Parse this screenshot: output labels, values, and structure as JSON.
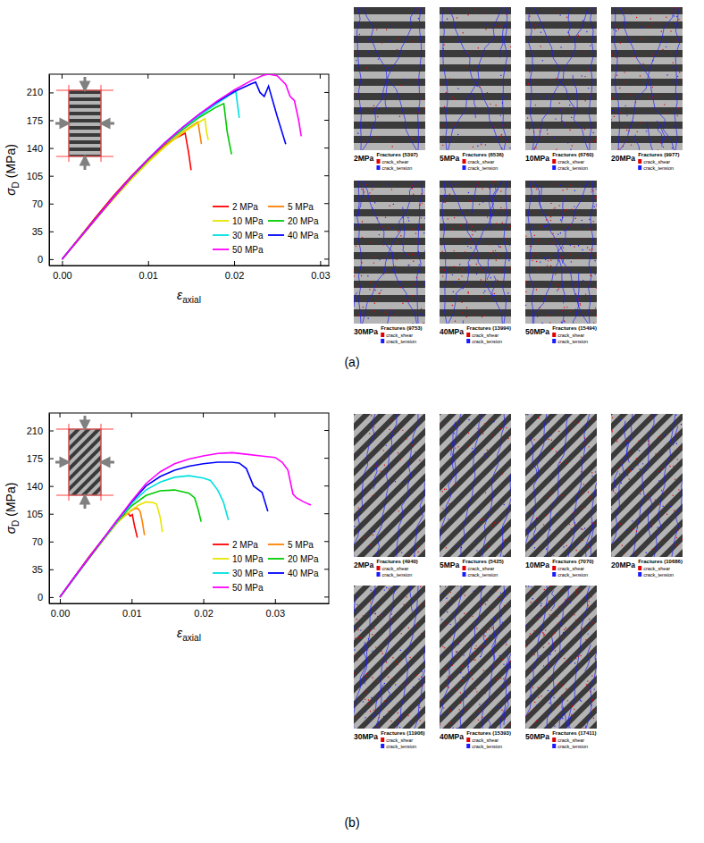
{
  "chart_data": [
    {
      "type": "line",
      "x_label": "εaxial",
      "y_label": "σD (MPa)",
      "xlim": [
        -0.0015,
        0.031
      ],
      "ylim": [
        -8,
        233
      ],
      "xticks": [
        {
          "value": 0,
          "label": "0.00"
        },
        {
          "value": 0.01,
          "label": "0.01"
        },
        {
          "value": 0.02,
          "label": "0.02"
        },
        {
          "value": 0.03,
          "label": "0.03"
        }
      ],
      "yticks": [
        0,
        35,
        70,
        105,
        140,
        175,
        210
      ],
      "legend": "lower right",
      "series": [
        {
          "name": "2 MPa",
          "color": "#ff0000",
          "x": [
            0,
            0.002,
            0.004,
            0.006,
            0.008,
            0.01,
            0.012,
            0.013,
            0.014,
            0.0143,
            0.0147,
            0.015
          ],
          "values": [
            0,
            27,
            54,
            80,
            104,
            126,
            144,
            151,
            157,
            159,
            135,
            112
          ]
        },
        {
          "name": "5 MPa",
          "color": "#ff8000",
          "x": [
            0,
            0.002,
            0.004,
            0.006,
            0.008,
            0.01,
            0.012,
            0.014,
            0.0155,
            0.0158,
            0.0162
          ],
          "values": [
            0,
            26,
            52,
            78,
            102,
            124,
            143,
            160,
            171,
            173,
            145
          ]
        },
        {
          "name": "10 MPa",
          "color": "#e6e600",
          "x": [
            0,
            0.002,
            0.004,
            0.006,
            0.008,
            0.01,
            0.012,
            0.014,
            0.016,
            0.0166,
            0.0168,
            0.017
          ],
          "values": [
            0,
            25,
            51,
            76,
            100,
            122,
            142,
            159,
            173,
            177,
            160,
            150
          ]
        },
        {
          "name": "20 MPa",
          "color": "#00cc00",
          "x": [
            0,
            0.002,
            0.004,
            0.006,
            0.008,
            0.01,
            0.012,
            0.014,
            0.016,
            0.018,
            0.0188,
            0.0192,
            0.0197
          ],
          "values": [
            0,
            26,
            52,
            78,
            102,
            125,
            146,
            163,
            179,
            192,
            196,
            160,
            132
          ]
        },
        {
          "name": "30 MPa",
          "color": "#00e0e0",
          "x": [
            0,
            0.002,
            0.004,
            0.006,
            0.008,
            0.01,
            0.012,
            0.014,
            0.016,
            0.018,
            0.0195,
            0.0202,
            0.0206
          ],
          "values": [
            0,
            26,
            52,
            78,
            103,
            126,
            147,
            165,
            181,
            196,
            207,
            211,
            178
          ]
        },
        {
          "name": "40 MPa",
          "color": "#0000ff",
          "x": [
            0,
            0.002,
            0.004,
            0.006,
            0.008,
            0.01,
            0.012,
            0.014,
            0.016,
            0.018,
            0.02,
            0.022,
            0.0225,
            0.023,
            0.0235,
            0.024,
            0.025,
            0.026
          ],
          "values": [
            0,
            26,
            52,
            78,
            103,
            126,
            147,
            166,
            183,
            198,
            211,
            221,
            223,
            210,
            205,
            218,
            180,
            145
          ]
        },
        {
          "name": "50 MPa",
          "color": "#ff00ff",
          "x": [
            0,
            0.002,
            0.004,
            0.006,
            0.008,
            0.01,
            0.012,
            0.014,
            0.016,
            0.018,
            0.02,
            0.022,
            0.0235,
            0.024,
            0.025,
            0.026,
            0.0265,
            0.027,
            0.0275,
            0.0278
          ],
          "values": [
            0,
            26,
            52,
            78,
            103,
            126,
            147,
            166,
            183,
            199,
            213,
            225,
            232,
            233,
            231,
            220,
            205,
            200,
            175,
            155
          ]
        }
      ]
    },
    {
      "type": "line",
      "x_label": "εaxial",
      "y_label": "σD (MPa)",
      "xlim": [
        -0.0015,
        0.0375
      ],
      "ylim": [
        -8,
        232
      ],
      "xticks": [
        {
          "value": 0,
          "label": "0.00"
        },
        {
          "value": 0.01,
          "label": "0.01"
        },
        {
          "value": 0.02,
          "label": "0.02"
        },
        {
          "value": 0.03,
          "label": "0.03"
        }
      ],
      "yticks": [
        0,
        35,
        70,
        105,
        140,
        175,
        210
      ],
      "legend": "lower right",
      "series": [
        {
          "name": "2 MPa",
          "color": "#ff0000",
          "x": [
            0,
            0.002,
            0.004,
            0.006,
            0.008,
            0.009,
            0.0095,
            0.0098,
            0.0101,
            0.0104,
            0.0108
          ],
          "values": [
            0,
            25,
            50,
            73,
            95,
            103,
            106,
            102,
            104,
            90,
            75
          ]
        },
        {
          "name": "5 MPa",
          "color": "#ff8000",
          "x": [
            0,
            0.002,
            0.004,
            0.006,
            0.008,
            0.0095,
            0.0103,
            0.0108,
            0.0112,
            0.0115,
            0.0118
          ],
          "values": [
            0,
            24,
            49,
            72,
            94,
            106,
            111,
            112,
            108,
            95,
            78
          ]
        },
        {
          "name": "10 MPa",
          "color": "#e6e600",
          "x": [
            0,
            0.002,
            0.004,
            0.006,
            0.008,
            0.01,
            0.011,
            0.012,
            0.013,
            0.0135,
            0.014,
            0.0143
          ],
          "values": [
            0,
            24,
            48,
            71,
            94,
            110,
            116,
            120,
            119,
            117,
            100,
            82
          ]
        },
        {
          "name": "20 MPa",
          "color": "#00cc00",
          "x": [
            0,
            0.002,
            0.004,
            0.006,
            0.008,
            0.01,
            0.012,
            0.014,
            0.016,
            0.018,
            0.0188,
            0.0193,
            0.0197
          ],
          "values": [
            0,
            24,
            48,
            72,
            95,
            115,
            128,
            134,
            135,
            131,
            125,
            110,
            95
          ]
        },
        {
          "name": "30 MPa",
          "color": "#00e0e0",
          "x": [
            0,
            0.002,
            0.004,
            0.006,
            0.008,
            0.01,
            0.012,
            0.014,
            0.016,
            0.018,
            0.02,
            0.021,
            0.022,
            0.0228,
            0.0235
          ],
          "values": [
            0,
            24,
            49,
            72,
            96,
            118,
            135,
            145,
            151,
            153,
            150,
            147,
            135,
            120,
            97
          ]
        },
        {
          "name": "40 MPa",
          "color": "#0000ff",
          "x": [
            0,
            0.002,
            0.004,
            0.006,
            0.008,
            0.01,
            0.012,
            0.014,
            0.016,
            0.018,
            0.02,
            0.022,
            0.024,
            0.025,
            0.026,
            0.027,
            0.0282,
            0.029
          ],
          "values": [
            0,
            25,
            49,
            73,
            97,
            120,
            140,
            152,
            160,
            165,
            168,
            170,
            170,
            169,
            162,
            140,
            132,
            108
          ]
        },
        {
          "name": "50 MPa",
          "color": "#ff00ff",
          "x": [
            0,
            0.002,
            0.004,
            0.006,
            0.008,
            0.01,
            0.012,
            0.014,
            0.016,
            0.018,
            0.02,
            0.022,
            0.024,
            0.026,
            0.028,
            0.03,
            0.031,
            0.0318,
            0.0325,
            0.033,
            0.034,
            0.035
          ],
          "values": [
            0,
            25,
            49,
            73,
            97,
            121,
            143,
            158,
            168,
            174,
            178,
            181,
            182,
            180,
            178,
            176,
            170,
            160,
            130,
            125,
            120,
            116
          ]
        }
      ]
    }
  ],
  "panels": [
    {
      "label": "(a)",
      "crack_legend": [
        {
          "name": "crack_shear",
          "color": "#e00000"
        },
        {
          "name": "crack_tension",
          "color": "#1a1aff"
        }
      ],
      "specimens": [
        {
          "pressure": "2MPa",
          "fractures": "Fractures (5397)"
        },
        {
          "pressure": "5MPa",
          "fractures": "Fractures (6536)"
        },
        {
          "pressure": "10MPa",
          "fractures": "Fractures (6760)"
        },
        {
          "pressure": "20MPa",
          "fractures": "Fractures (9977)"
        },
        {
          "pressure": "30MPa",
          "fractures": "Fractures (9753)"
        },
        {
          "pressure": "40MPa",
          "fractures": "Fractures (13994)"
        },
        {
          "pressure": "50MPa",
          "fractures": "Fractures (15494)"
        }
      ]
    },
    {
      "label": "(b)",
      "crack_legend": [
        {
          "name": "crack_shear",
          "color": "#e00000"
        },
        {
          "name": "crack_tension",
          "color": "#1a1aff"
        }
      ],
      "specimens": [
        {
          "pressure": "2MPa",
          "fractures": "Fractures (4940)"
        },
        {
          "pressure": "5MPa",
          "fractures": "Fractures (5425)"
        },
        {
          "pressure": "10MPa",
          "fractures": "Fractures (7070)"
        },
        {
          "pressure": "20MPa",
          "fractures": "Fractures (10686)"
        },
        {
          "pressure": "30MPa",
          "fractures": "Fractures (11906)"
        },
        {
          "pressure": "40MPa",
          "fractures": "Fractures (15393)"
        },
        {
          "pressure": "50MPa",
          "fractures": "Fractures (17411)"
        }
      ]
    }
  ]
}
